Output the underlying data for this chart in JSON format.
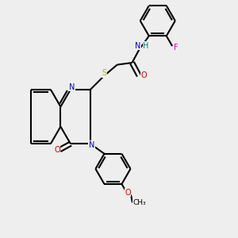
{
  "background_color": "#eeeeee",
  "bond_color": "#000000",
  "N_color": "#0000cc",
  "O_color": "#cc0000",
  "S_color": "#bbaa00",
  "F_color": "#cc00cc",
  "H_color": "#008080",
  "figsize": [
    3.0,
    3.0
  ],
  "dpi": 100,
  "lw": 1.5,
  "fs": 7.0,
  "xlim": [
    0,
    10
  ],
  "ylim": [
    0,
    10
  ]
}
